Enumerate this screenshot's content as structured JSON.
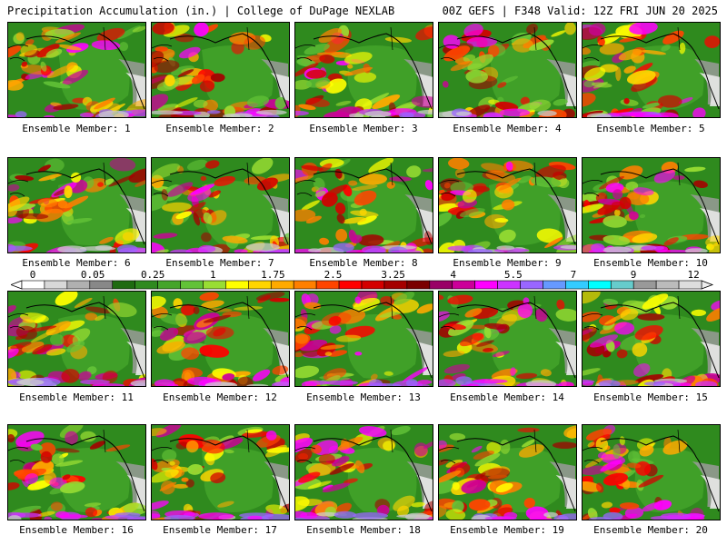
{
  "header": {
    "left": "Precipitation Accumulation (in.) | College of DuPage NEXLAB",
    "right": "00Z GEFS | F348 Valid: 12Z FRI JUN 20 2025"
  },
  "colors": {
    "land_base": "#2f8a1e",
    "border_lines": "#000000"
  },
  "colorbar": {
    "labels": [
      "0",
      "0.05",
      "0.25",
      "1",
      "1.75",
      "2.5",
      "3.25",
      "4",
      "5.5",
      "7",
      "9",
      "12"
    ],
    "colors": [
      "#ffffff",
      "#d8d8d8",
      "#b0b0b0",
      "#888888",
      "#1e6b10",
      "#2f8a1e",
      "#45a52a",
      "#62c237",
      "#99dd33",
      "#ffff00",
      "#ffd500",
      "#ffaa00",
      "#ff7f00",
      "#ff4400",
      "#ff0000",
      "#d40000",
      "#a50000",
      "#7a0000",
      "#990066",
      "#cc0099",
      "#ff00ff",
      "#cc33ff",
      "#9966ff",
      "#6699ff",
      "#33ccff",
      "#00ffff",
      "#66cccc",
      "#999999",
      "#bbbbbb",
      "#dddddd"
    ]
  },
  "members": [
    {
      "caption": "Ensemble Member: 1"
    },
    {
      "caption": "Ensemble Member: 2"
    },
    {
      "caption": "Ensemble Member: 3"
    },
    {
      "caption": "Ensemble Member: 4"
    },
    {
      "caption": "Ensemble Member: 5"
    },
    {
      "caption": "Ensemble Member: 6"
    },
    {
      "caption": "Ensemble Member: 7"
    },
    {
      "caption": "Ensemble Member: 8"
    },
    {
      "caption": "Ensemble Member: 9"
    },
    {
      "caption": "Ensemble Member: 10"
    },
    {
      "caption": "Ensemble Member: 11"
    },
    {
      "caption": "Ensemble Member: 12"
    },
    {
      "caption": "Ensemble Member: 13"
    },
    {
      "caption": "Ensemble Member: 14"
    },
    {
      "caption": "Ensemble Member: 15"
    },
    {
      "caption": "Ensemble Member: 16"
    },
    {
      "caption": "Ensemble Member: 17"
    },
    {
      "caption": "Ensemble Member: 18"
    },
    {
      "caption": "Ensemble Member: 19"
    },
    {
      "caption": "Ensemble Member: 20"
    }
  ]
}
